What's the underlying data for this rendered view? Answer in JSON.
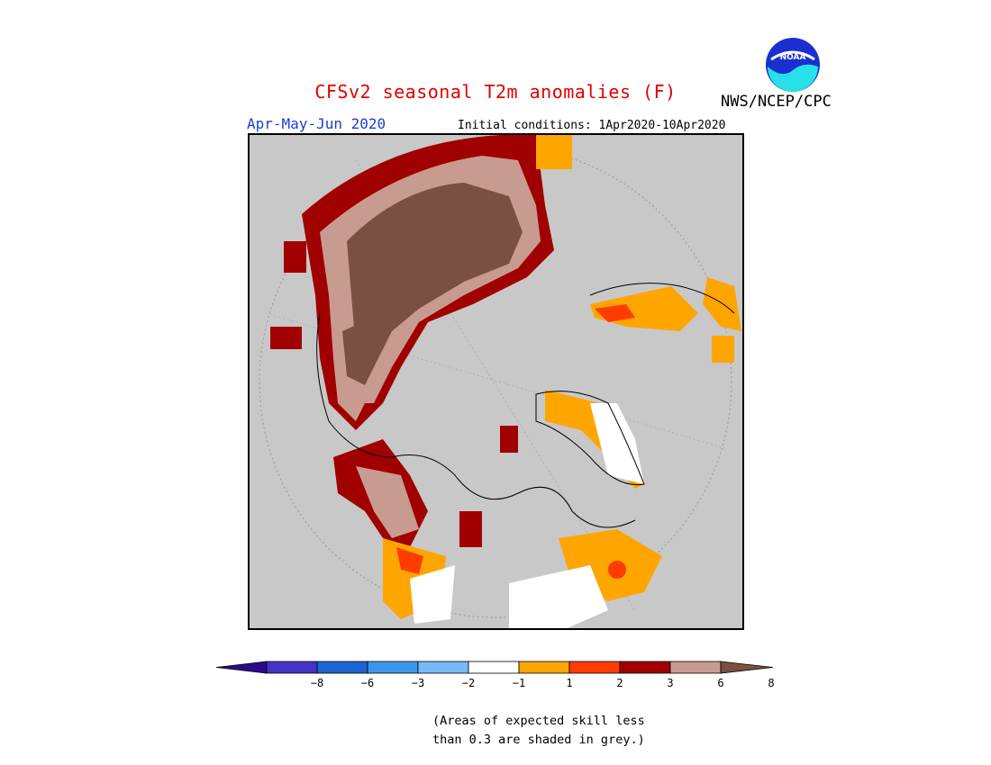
{
  "header": {
    "title": "CFSv2 seasonal T2m anomalies (F)",
    "org": "NWS/NCEP/CPC",
    "season": "Apr-May-Jun 2020",
    "initial_conditions": "Initial conditions: 1Apr2020-10Apr2020",
    "logo_text": "NOAA"
  },
  "colorbar": {
    "colors": [
      "#2a0a8c",
      "#4632c8",
      "#1e64d2",
      "#3c96ec",
      "#78b9f5",
      "#ffffff",
      "#ffa500",
      "#ff3c00",
      "#a00000",
      "#c89b91",
      "#7a5042"
    ],
    "labels": [
      "−8",
      "−6",
      "−3",
      "−2",
      "−1",
      "1",
      "2",
      "3",
      "6",
      "8"
    ]
  },
  "note": {
    "line1": "(Areas of expected skill less",
    "line2": "than 0.3 are shaded in grey.)"
  },
  "map_colors": {
    "background": "#c8c8c8",
    "dark_brown": "#7a5042",
    "pink_brown": "#c89b91",
    "dark_red": "#a00000",
    "red": "#ff3c00",
    "orange": "#ffa500",
    "white": "#ffffff"
  }
}
